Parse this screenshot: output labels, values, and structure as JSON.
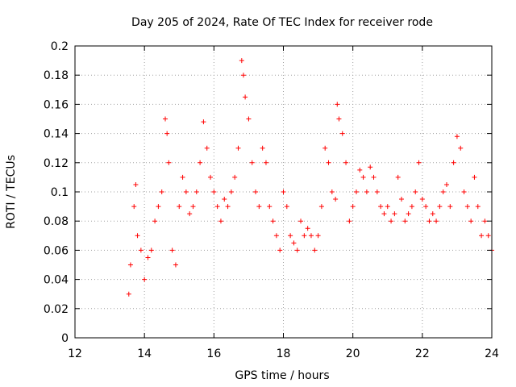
{
  "chart_data": {
    "type": "scatter",
    "title": "Day 205 of 2024, Rate Of TEC Index for receiver rode",
    "xlabel": "GPS time / hours",
    "ylabel": "ROTI / TECUs",
    "xlim": [
      12,
      24
    ],
    "ylim": [
      0,
      0.2
    ],
    "x_ticks": [
      "12",
      "14",
      "16",
      "18",
      "20",
      "22",
      "24"
    ],
    "y_ticks": [
      "0",
      "0.02",
      "0.04",
      "0.06",
      "0.08",
      "0.1",
      "0.12",
      "0.14",
      "0.16",
      "0.18",
      "0.2"
    ],
    "grid": true,
    "marker": "+",
    "series": [
      {
        "color": "#ff0000",
        "x": [
          13.55,
          13.6,
          13.7,
          13.75,
          13.8,
          13.9,
          14.0,
          14.1,
          14.2,
          14.3,
          14.4,
          14.5,
          14.6,
          14.65,
          14.7,
          14.8,
          14.9,
          15.0,
          15.1,
          15.2,
          15.3,
          15.4,
          15.5,
          15.6,
          15.7,
          15.8,
          15.9,
          16.0,
          16.1,
          16.2,
          16.3,
          16.4,
          16.5,
          16.6,
          16.7,
          16.8,
          16.85,
          16.9,
          17.0,
          17.1,
          17.2,
          17.3,
          17.4,
          17.5,
          17.6,
          17.7,
          17.8,
          17.9,
          18.0,
          18.1,
          18.2,
          18.3,
          18.4,
          18.5,
          18.6,
          18.7,
          18.8,
          18.9,
          19.0,
          19.1,
          19.2,
          19.3,
          19.4,
          19.5,
          19.55,
          19.6,
          19.7,
          19.8,
          19.9,
          20.0,
          20.1,
          20.2,
          20.3,
          20.4,
          20.5,
          20.6,
          20.7,
          20.8,
          20.9,
          21.0,
          21.1,
          21.2,
          21.3,
          21.4,
          21.5,
          21.6,
          21.7,
          21.8,
          21.9,
          22.0,
          22.1,
          22.2,
          22.3,
          22.4,
          22.5,
          22.6,
          22.7,
          22.8,
          22.9,
          23.0,
          23.1,
          23.2,
          23.3,
          23.4,
          23.5,
          23.6,
          23.7,
          23.8,
          23.9,
          24.0
        ],
        "y": [
          0.03,
          0.05,
          0.09,
          0.105,
          0.07,
          0.06,
          0.04,
          0.055,
          0.06,
          0.08,
          0.09,
          0.1,
          0.15,
          0.14,
          0.12,
          0.06,
          0.05,
          0.09,
          0.11,
          0.1,
          0.085,
          0.09,
          0.1,
          0.12,
          0.148,
          0.13,
          0.11,
          0.1,
          0.09,
          0.08,
          0.095,
          0.09,
          0.1,
          0.11,
          0.13,
          0.19,
          0.18,
          0.165,
          0.15,
          0.12,
          0.1,
          0.09,
          0.13,
          0.12,
          0.09,
          0.08,
          0.07,
          0.06,
          0.1,
          0.09,
          0.07,
          0.065,
          0.06,
          0.08,
          0.07,
          0.075,
          0.07,
          0.06,
          0.07,
          0.09,
          0.13,
          0.12,
          0.1,
          0.095,
          0.16,
          0.15,
          0.14,
          0.12,
          0.08,
          0.09,
          0.1,
          0.115,
          0.11,
          0.1,
          0.117,
          0.11,
          0.1,
          0.09,
          0.085,
          0.09,
          0.08,
          0.085,
          0.11,
          0.095,
          0.08,
          0.085,
          0.09,
          0.1,
          0.12,
          0.095,
          0.09,
          0.08,
          0.085,
          0.08,
          0.09,
          0.1,
          0.105,
          0.09,
          0.12,
          0.138,
          0.13,
          0.1,
          0.09,
          0.08,
          0.11,
          0.09,
          0.07,
          0.08,
          0.07,
          0.06
        ]
      }
    ]
  }
}
